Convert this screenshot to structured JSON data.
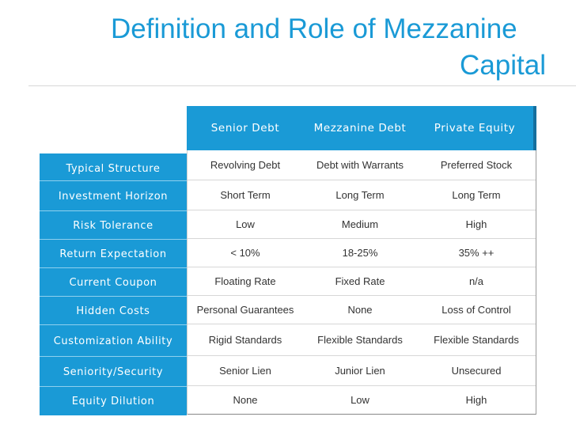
{
  "slide": {
    "title_line1": "Definition and Role of Mezzanine",
    "title_line2": "Capital"
  },
  "table": {
    "columns": [
      "Senior Debt",
      "Mezzanine Debt",
      "Private Equity"
    ],
    "rows": [
      {
        "label": "Typical Structure",
        "values": [
          "Revolving Debt",
          "Debt with Warrants",
          "Preferred Stock"
        ]
      },
      {
        "label": "Investment Horizon",
        "values": [
          "Short Term",
          "Long Term",
          "Long Term"
        ]
      },
      {
        "label": "Risk Tolerance",
        "values": [
          "Low",
          "Medium",
          "High"
        ]
      },
      {
        "label": "Return Expectation",
        "values": [
          "< 10%",
          "18-25%",
          "35% ++"
        ]
      },
      {
        "label": "Current Coupon",
        "values": [
          "Floating Rate",
          "Fixed Rate",
          "n/a"
        ]
      },
      {
        "label": "Hidden Costs",
        "values": [
          "Personal Guarantees",
          "None",
          "Loss of Control"
        ]
      },
      {
        "label": "Customization Ability",
        "values": [
          "Rigid Standards",
          "Flexible Standards",
          "Flexible Standards"
        ]
      },
      {
        "label": "Seniority/Security",
        "values": [
          "Senior Lien",
          "Junior Lien",
          "Unsecured"
        ]
      },
      {
        "label": "Equity Dilution",
        "values": [
          "None",
          "Low",
          "High"
        ]
      }
    ]
  },
  "colors": {
    "accent": "#1a9ad6",
    "header_divider": "#156f9e",
    "text": "#333333"
  }
}
